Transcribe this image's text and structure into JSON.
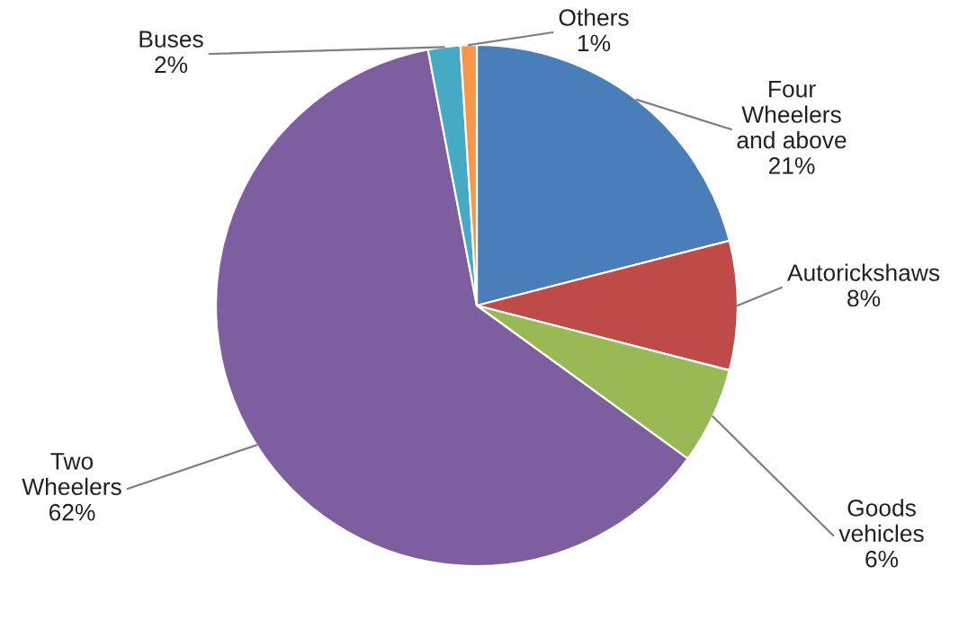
{
  "chart_data": {
    "type": "pie",
    "categories": [
      "Four Wheelers and above",
      "Autorickshaws",
      "Goods vehicles",
      "Two Wheelers",
      "Buses",
      "Others"
    ],
    "values": [
      21,
      8,
      6,
      62,
      2,
      1
    ],
    "colors": [
      "#4a7ebb",
      "#be4b48",
      "#98b954",
      "#7d5fa0",
      "#46aac5",
      "#f79646"
    ],
    "value_labels": [
      "21%",
      "8%",
      "6%",
      "62%",
      "2%",
      "1%"
    ],
    "legend": false
  }
}
